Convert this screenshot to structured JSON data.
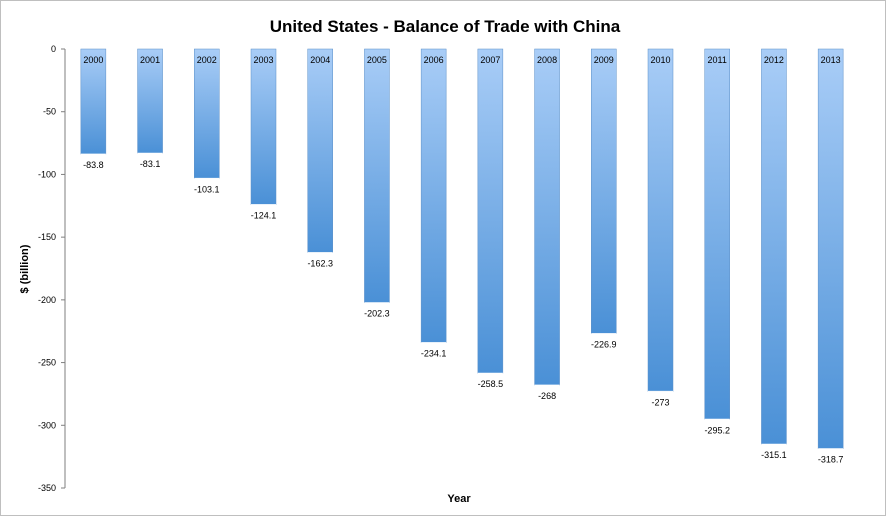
{
  "chart_data": {
    "type": "bar",
    "title": "United States - Balance of Trade with China",
    "xlabel": "Year",
    "ylabel": "$ (billion)",
    "ylim": [
      -350,
      0
    ],
    "yticks": [
      0,
      -50,
      -100,
      -150,
      -200,
      -250,
      -300,
      -350
    ],
    "grid": false,
    "legend": "none",
    "categories": [
      "2000",
      "2001",
      "2002",
      "2003",
      "2004",
      "2005",
      "2006",
      "2007",
      "2008",
      "2009",
      "2010",
      "2011",
      "2012",
      "2013"
    ],
    "values": [
      -83.8,
      -83.1,
      -103.1,
      -124.1,
      -162.3,
      -202.3,
      -234.1,
      -258.5,
      -268,
      -226.9,
      -273,
      -295.2,
      -315.1,
      -318.7
    ],
    "value_labels": [
      "-83.8",
      "-83.1",
      "-103.1",
      "-124.1",
      "-162.3",
      "-202.3",
      "-234.1",
      "-258.5",
      "-268",
      "-226.9",
      "-273",
      "-295.2",
      "-315.1",
      "-318.7"
    ],
    "colors": {
      "bar_top": "#a9cdf7",
      "bar_bottom": "#4a90d6",
      "axis": "#7f7f7f"
    }
  }
}
